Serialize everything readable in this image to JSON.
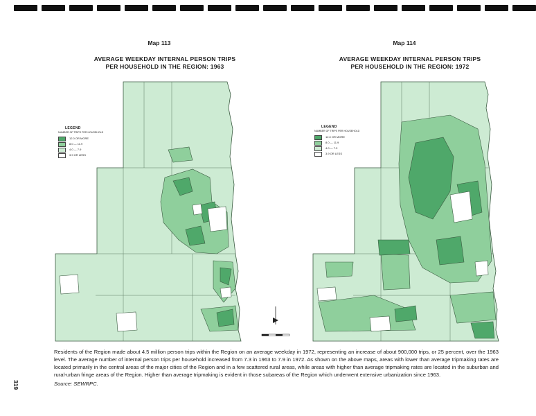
{
  "maps": [
    {
      "label": "Map 113",
      "title_line1": "AVERAGE WEEKDAY INTERNAL PERSON TRIPS",
      "title_line2": "PER HOUSEHOLD IN THE REGION: 1963"
    },
    {
      "label": "Map 114",
      "title_line1": "AVERAGE WEEKDAY INTERNAL PERSON TRIPS",
      "title_line2": "PER HOUSEHOLD IN THE REGION: 1972"
    }
  ],
  "legend": {
    "title": "LEGEND",
    "subtitle": "NUMBER OF TRIPS PER HOUSEHOLD",
    "items": [
      {
        "label": "12.0 OR MORE",
        "color": "#4fa86a"
      },
      {
        "label": "8.0 — 11.9",
        "color": "#8fcf9c"
      },
      {
        "label": "4.0 — 7.9",
        "color": "#cdebd3"
      },
      {
        "label": "3.9 OR LESS",
        "color": "#ffffff"
      }
    ]
  },
  "caption": "Residents of the Region made about 4.5 million person trips within the Region on an average weekday in 1972, representing an increase of about 900,000 trips, or 25 percent, over the 1963 level. The average number of internal person trips per household increased from 7.3 in 1963 to 7.9 in 1972. As shown on the above maps, areas with lower than average tripmaking rates are located primarily in the central areas of the major cities of the Region and in a few scattered rural areas, while areas with higher than average tripmaking rates are located in the suburban and rural-urban fringe areas of the Region. Higher than average tripmaking is evident in those subareas of the Region which underwent extensive urbanization since 1963.",
  "source": "Source:  SEWRPC.",
  "page_number": "319",
  "colors": {
    "base": "#cdebd3",
    "medium": "#8fcf9c",
    "dark": "#4fa86a",
    "white": "#ffffff",
    "outline": "#3a5a40"
  }
}
